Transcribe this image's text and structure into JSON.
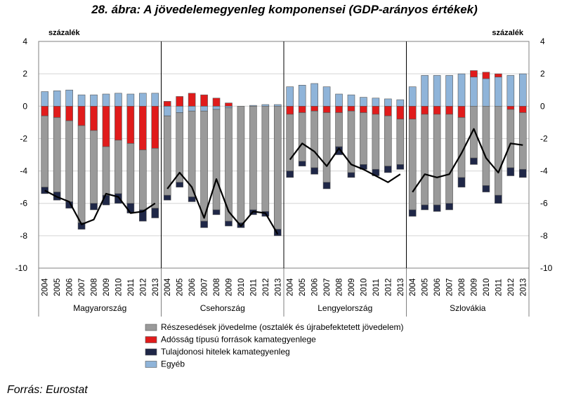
{
  "title": "28. ábra: A jövedelemegyenleg komponensei (GDP-arányos értékek)",
  "source": "Forrás: Eurostat",
  "chart_data": {
    "type": "bar",
    "subtype": "stacked bars with line",
    "y_unit_left": "százalék",
    "y_unit_right": "százalék",
    "ylim": [
      -10,
      4
    ],
    "yticks": [
      4,
      2,
      0,
      -2,
      -4,
      -6,
      -8,
      -10
    ],
    "ytick_labels": [
      "4",
      "2",
      "0",
      "-2",
      "-4",
      "-6",
      "-8",
      "-10"
    ],
    "years": [
      "2004",
      "2005",
      "2006",
      "2007",
      "2008",
      "2009",
      "2010",
      "2011",
      "2012",
      "2013"
    ],
    "groups": [
      "Magyarország",
      "Csehország",
      "Lengyelország",
      "Szlovákia"
    ],
    "legend": [
      "Részesedések jövedelme (osztalék és újrabefektetett jövedelem)",
      "Adósság típusú források kamategyenlege",
      "Tulajdonosi hitelek kamategyenleg",
      "Egyéb"
    ],
    "colors": {
      "reszesedes": "#9a9a9a",
      "adossag": "#e01b1b",
      "tulajdonosi": "#1f2747",
      "egyeb": "#8fb4d9",
      "line": "#000000"
    },
    "series": [
      {
        "key": "egyeb",
        "name": "Egyéb",
        "values": [
          [
            0.9,
            0.95,
            1.0,
            0.7,
            0.7,
            0.75,
            0.8,
            0.75,
            0.8,
            0.8
          ],
          [
            -0.6,
            -0.4,
            -0.3,
            -0.3,
            -0.2,
            -0.1,
            0.0,
            0.05,
            0.1,
            0.1
          ],
          [
            1.2,
            1.3,
            1.4,
            1.2,
            0.75,
            0.7,
            0.55,
            0.5,
            0.45,
            0.4
          ],
          [
            1.2,
            1.9,
            1.9,
            1.9,
            2.0,
            1.8,
            1.7,
            1.8,
            1.9,
            2.0
          ]
        ]
      },
      {
        "key": "adossag",
        "name": "Adósság típusú források kamategyenlege",
        "values": [
          [
            -0.6,
            -0.7,
            -0.9,
            -1.2,
            -1.5,
            -2.5,
            -2.1,
            -2.3,
            -2.7,
            -2.6
          ],
          [
            0.3,
            0.6,
            0.8,
            0.7,
            0.5,
            0.2,
            0.0,
            0.0,
            0.0,
            0.0
          ],
          [
            -0.5,
            -0.4,
            -0.3,
            -0.4,
            -0.4,
            -0.3,
            -0.4,
            -0.5,
            -0.6,
            -0.8
          ],
          [
            -0.8,
            -0.5,
            -0.5,
            -0.5,
            -0.7,
            0.4,
            0.4,
            0.2,
            -0.2,
            -0.4
          ]
        ]
      },
      {
        "key": "reszesedes",
        "name": "Részesedések jövedelme (osztalék és újrabefektetett jövedelem)",
        "values": [
          [
            -4.4,
            -4.6,
            -5.0,
            -6.0,
            -4.5,
            -3.0,
            -3.3,
            -3.7,
            -3.7,
            -3.7
          ],
          [
            -4.9,
            -4.3,
            -5.3,
            -6.8,
            -6.2,
            -7.0,
            -7.2,
            -6.4,
            -6.5,
            -7.6
          ],
          [
            -3.5,
            -3.0,
            -3.5,
            -4.3,
            -2.1,
            -3.8,
            -3.2,
            -3.4,
            -3.1,
            -2.8
          ],
          [
            -5.6,
            -5.6,
            -5.6,
            -5.5,
            -3.7,
            -3.2,
            -4.9,
            -5.5,
            -3.6,
            -3.5
          ]
        ]
      },
      {
        "key": "tulajdonosi",
        "name": "Tulajdonosi hitelek kamategyenleg",
        "values": [
          [
            -0.4,
            -0.5,
            -0.4,
            -0.4,
            -0.4,
            -0.6,
            -0.6,
            -0.6,
            -0.7,
            -0.6
          ],
          [
            -0.3,
            -0.3,
            -0.3,
            -0.4,
            -0.3,
            -0.3,
            -0.3,
            -0.3,
            -0.3,
            -0.4
          ],
          [
            -0.4,
            -0.3,
            -0.4,
            -0.4,
            -0.5,
            -0.3,
            -0.3,
            -0.4,
            -0.4,
            -0.3
          ],
          [
            -0.4,
            -0.3,
            -0.4,
            -0.4,
            -0.6,
            -0.4,
            -0.4,
            -0.5,
            -0.5,
            -0.5
          ]
        ]
      }
    ],
    "line": {
      "name": "Jövedelemegyenleg",
      "values": [
        [
          -5.2,
          -5.6,
          -5.9,
          -7.3,
          -7.0,
          -5.4,
          -5.6,
          -6.6,
          -6.5,
          -6.0
        ],
        [
          -5.1,
          -4.1,
          -5.0,
          -6.9,
          -4.5,
          -6.5,
          -7.4,
          -6.5,
          -6.6,
          -7.9
        ],
        [
          -3.3,
          -2.3,
          -2.8,
          -3.7,
          -2.6,
          -3.6,
          -3.9,
          -4.3,
          -4.7,
          -4.2
        ],
        [
          -5.3,
          -4.2,
          -4.4,
          -4.2,
          -2.9,
          -1.4,
          -3.2,
          -4.1,
          -2.3,
          -2.4
        ]
      ]
    }
  }
}
